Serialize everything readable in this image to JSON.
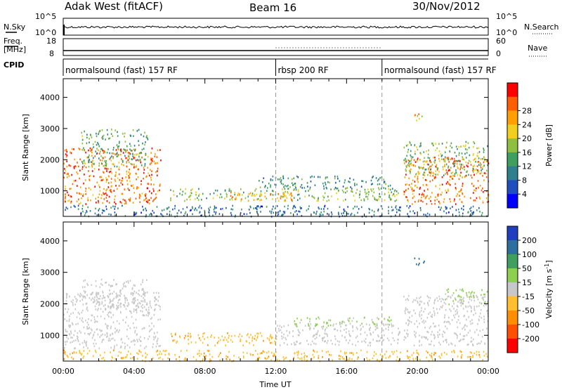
{
  "header": {
    "radar": "Adak West (fitACF)",
    "beam": "Beam 16",
    "date": "30/Nov/2012"
  },
  "strip": {
    "nsky_label": "N.Sky",
    "nsky_ticks": [
      "10^5",
      "10^0"
    ],
    "nsearch_label": "N.Search",
    "nsearch_ticks": [
      "10^5",
      "10^0"
    ],
    "freq_label_1": "Freq.",
    "freq_label_2": "[MHz]",
    "freq_ticks": [
      "18",
      "8"
    ],
    "nave_label": "Nave",
    "nave_ticks": [
      "60",
      "0"
    ],
    "cpid_label": "CPID",
    "cpid_segments": [
      {
        "label": "normalsound (fast) 157 RF",
        "start_hour": 0,
        "end_hour": 12
      },
      {
        "label": "rbsp 200 RF",
        "start_hour": 12,
        "end_hour": 18
      },
      {
        "label": "normalsound (fast) 157 RF",
        "start_hour": 18,
        "end_hour": 24
      }
    ]
  },
  "chart_data": [
    {
      "type": "heatmap",
      "title": "Power",
      "ylabel": "Slant Range [km]",
      "xlabel": "Time UT",
      "xlim": [
        0,
        24
      ],
      "ylim": [
        180,
        4600
      ],
      "yticks": [
        1000,
        2000,
        3000,
        4000
      ],
      "xticks": [
        "00:00",
        "04:00",
        "08:00",
        "12:00",
        "16:00",
        "20:00",
        "00:00"
      ],
      "colorbar": {
        "label": "Power [dB]",
        "ticks": [
          "4",
          "8",
          "12",
          "16",
          "20",
          "24",
          "28"
        ],
        "range": [
          0,
          30
        ],
        "colors": [
          "#0000ff",
          "#1f4fbf",
          "#2f7f8f",
          "#3f9f5f",
          "#8fbf3f",
          "#efcf1f",
          "#ff9f00",
          "#ff5f00",
          "#ff0000"
        ]
      },
      "echo_regions": [
        {
          "t_start": 0.0,
          "t_end": 5.5,
          "r_low": 600,
          "r_high": 2400,
          "value": 24
        },
        {
          "t_start": 1.0,
          "t_end": 4.8,
          "r_low": 1800,
          "r_high": 3000,
          "value": 12
        },
        {
          "t_start": 6.0,
          "t_end": 19.0,
          "r_low": 700,
          "r_high": 1100,
          "value": 14
        },
        {
          "t_start": 9.0,
          "t_end": 13.0,
          "r_low": 700,
          "r_high": 1000,
          "value": 20
        },
        {
          "t_start": 11.0,
          "t_end": 18.5,
          "r_low": 1100,
          "r_high": 1500,
          "value": 10
        },
        {
          "t_start": 19.2,
          "t_end": 24.0,
          "r_low": 600,
          "r_high": 2100,
          "value": 24
        },
        {
          "t_start": 19.2,
          "t_end": 24.0,
          "r_low": 1500,
          "r_high": 2600,
          "value": 14
        },
        {
          "t_start": 19.8,
          "t_end": 20.4,
          "r_low": 3200,
          "r_high": 3500,
          "value": 20
        },
        {
          "t_start": 0.0,
          "t_end": 24.0,
          "r_low": 200,
          "r_high": 550,
          "value": 8
        }
      ]
    },
    {
      "type": "heatmap",
      "title": "Velocity",
      "ylabel": "Slant Range [km]",
      "xlabel": "Time UT",
      "xlim": [
        0,
        24
      ],
      "ylim": [
        180,
        4600
      ],
      "yticks": [
        1000,
        2000,
        3000,
        4000
      ],
      "xticks": [
        "00:00",
        "04:00",
        "08:00",
        "12:00",
        "16:00",
        "20:00",
        "00:00"
      ],
      "colorbar": {
        "label_main": "Velocity [m s",
        "label_sup": "-1",
        "label_end": "]",
        "ticks": [
          "200",
          "100",
          "50",
          "15",
          "-15",
          "-50",
          "-100",
          "-200"
        ],
        "colors": [
          "#1f3fbf",
          "#2f6f9f",
          "#3f9f5f",
          "#8fcf4f",
          "#c8c8c8",
          "#ffbf2f",
          "#ff8f00",
          "#ff4f00",
          "#ff0000"
        ]
      },
      "echo_regions": [
        {
          "t_start": 0.0,
          "t_end": 5.5,
          "r_low": 600,
          "r_high": 2400,
          "value": 0
        },
        {
          "t_start": 1.0,
          "t_end": 4.8,
          "r_low": 1800,
          "r_high": 2800,
          "value": 0
        },
        {
          "t_start": 6.0,
          "t_end": 12.0,
          "r_low": 700,
          "r_high": 1100,
          "value": -40
        },
        {
          "t_start": 12.0,
          "t_end": 19.0,
          "r_low": 700,
          "r_high": 1400,
          "value": 0
        },
        {
          "t_start": 13.0,
          "t_end": 18.5,
          "r_low": 1300,
          "r_high": 1600,
          "value": 20
        },
        {
          "t_start": 19.2,
          "t_end": 24.0,
          "r_low": 700,
          "r_high": 2300,
          "value": 0
        },
        {
          "t_start": 21.5,
          "t_end": 24.0,
          "r_low": 2000,
          "r_high": 2500,
          "value": 25
        },
        {
          "t_start": 19.8,
          "t_end": 20.4,
          "r_low": 3200,
          "r_high": 3500,
          "value": 150
        },
        {
          "t_start": 0.0,
          "t_end": 24.0,
          "r_low": 200,
          "r_high": 550,
          "value": -40
        }
      ]
    }
  ]
}
